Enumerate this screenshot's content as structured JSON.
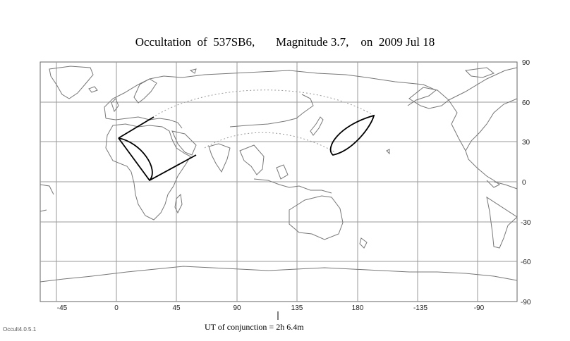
{
  "title": "Occultation  of  537SB6,       Magnitude 3.7,    on  2009 Jul 18",
  "map": {
    "longitude_labels": [
      "-45",
      "0",
      "45",
      "90",
      "135",
      "180",
      "-135",
      "-90"
    ],
    "latitude_labels": [
      "90",
      "60",
      "30",
      "0",
      "-30",
      "-60",
      "-90"
    ],
    "grid": true,
    "colors": {
      "coast": "#777777",
      "grid": "#9a9a9a",
      "path": "#000000",
      "dotted": "#999999"
    }
  },
  "footer": {
    "conjunction_label": "UT of conjunction =  2h  6.4m"
  },
  "version": "Occult4.0.5.1"
}
